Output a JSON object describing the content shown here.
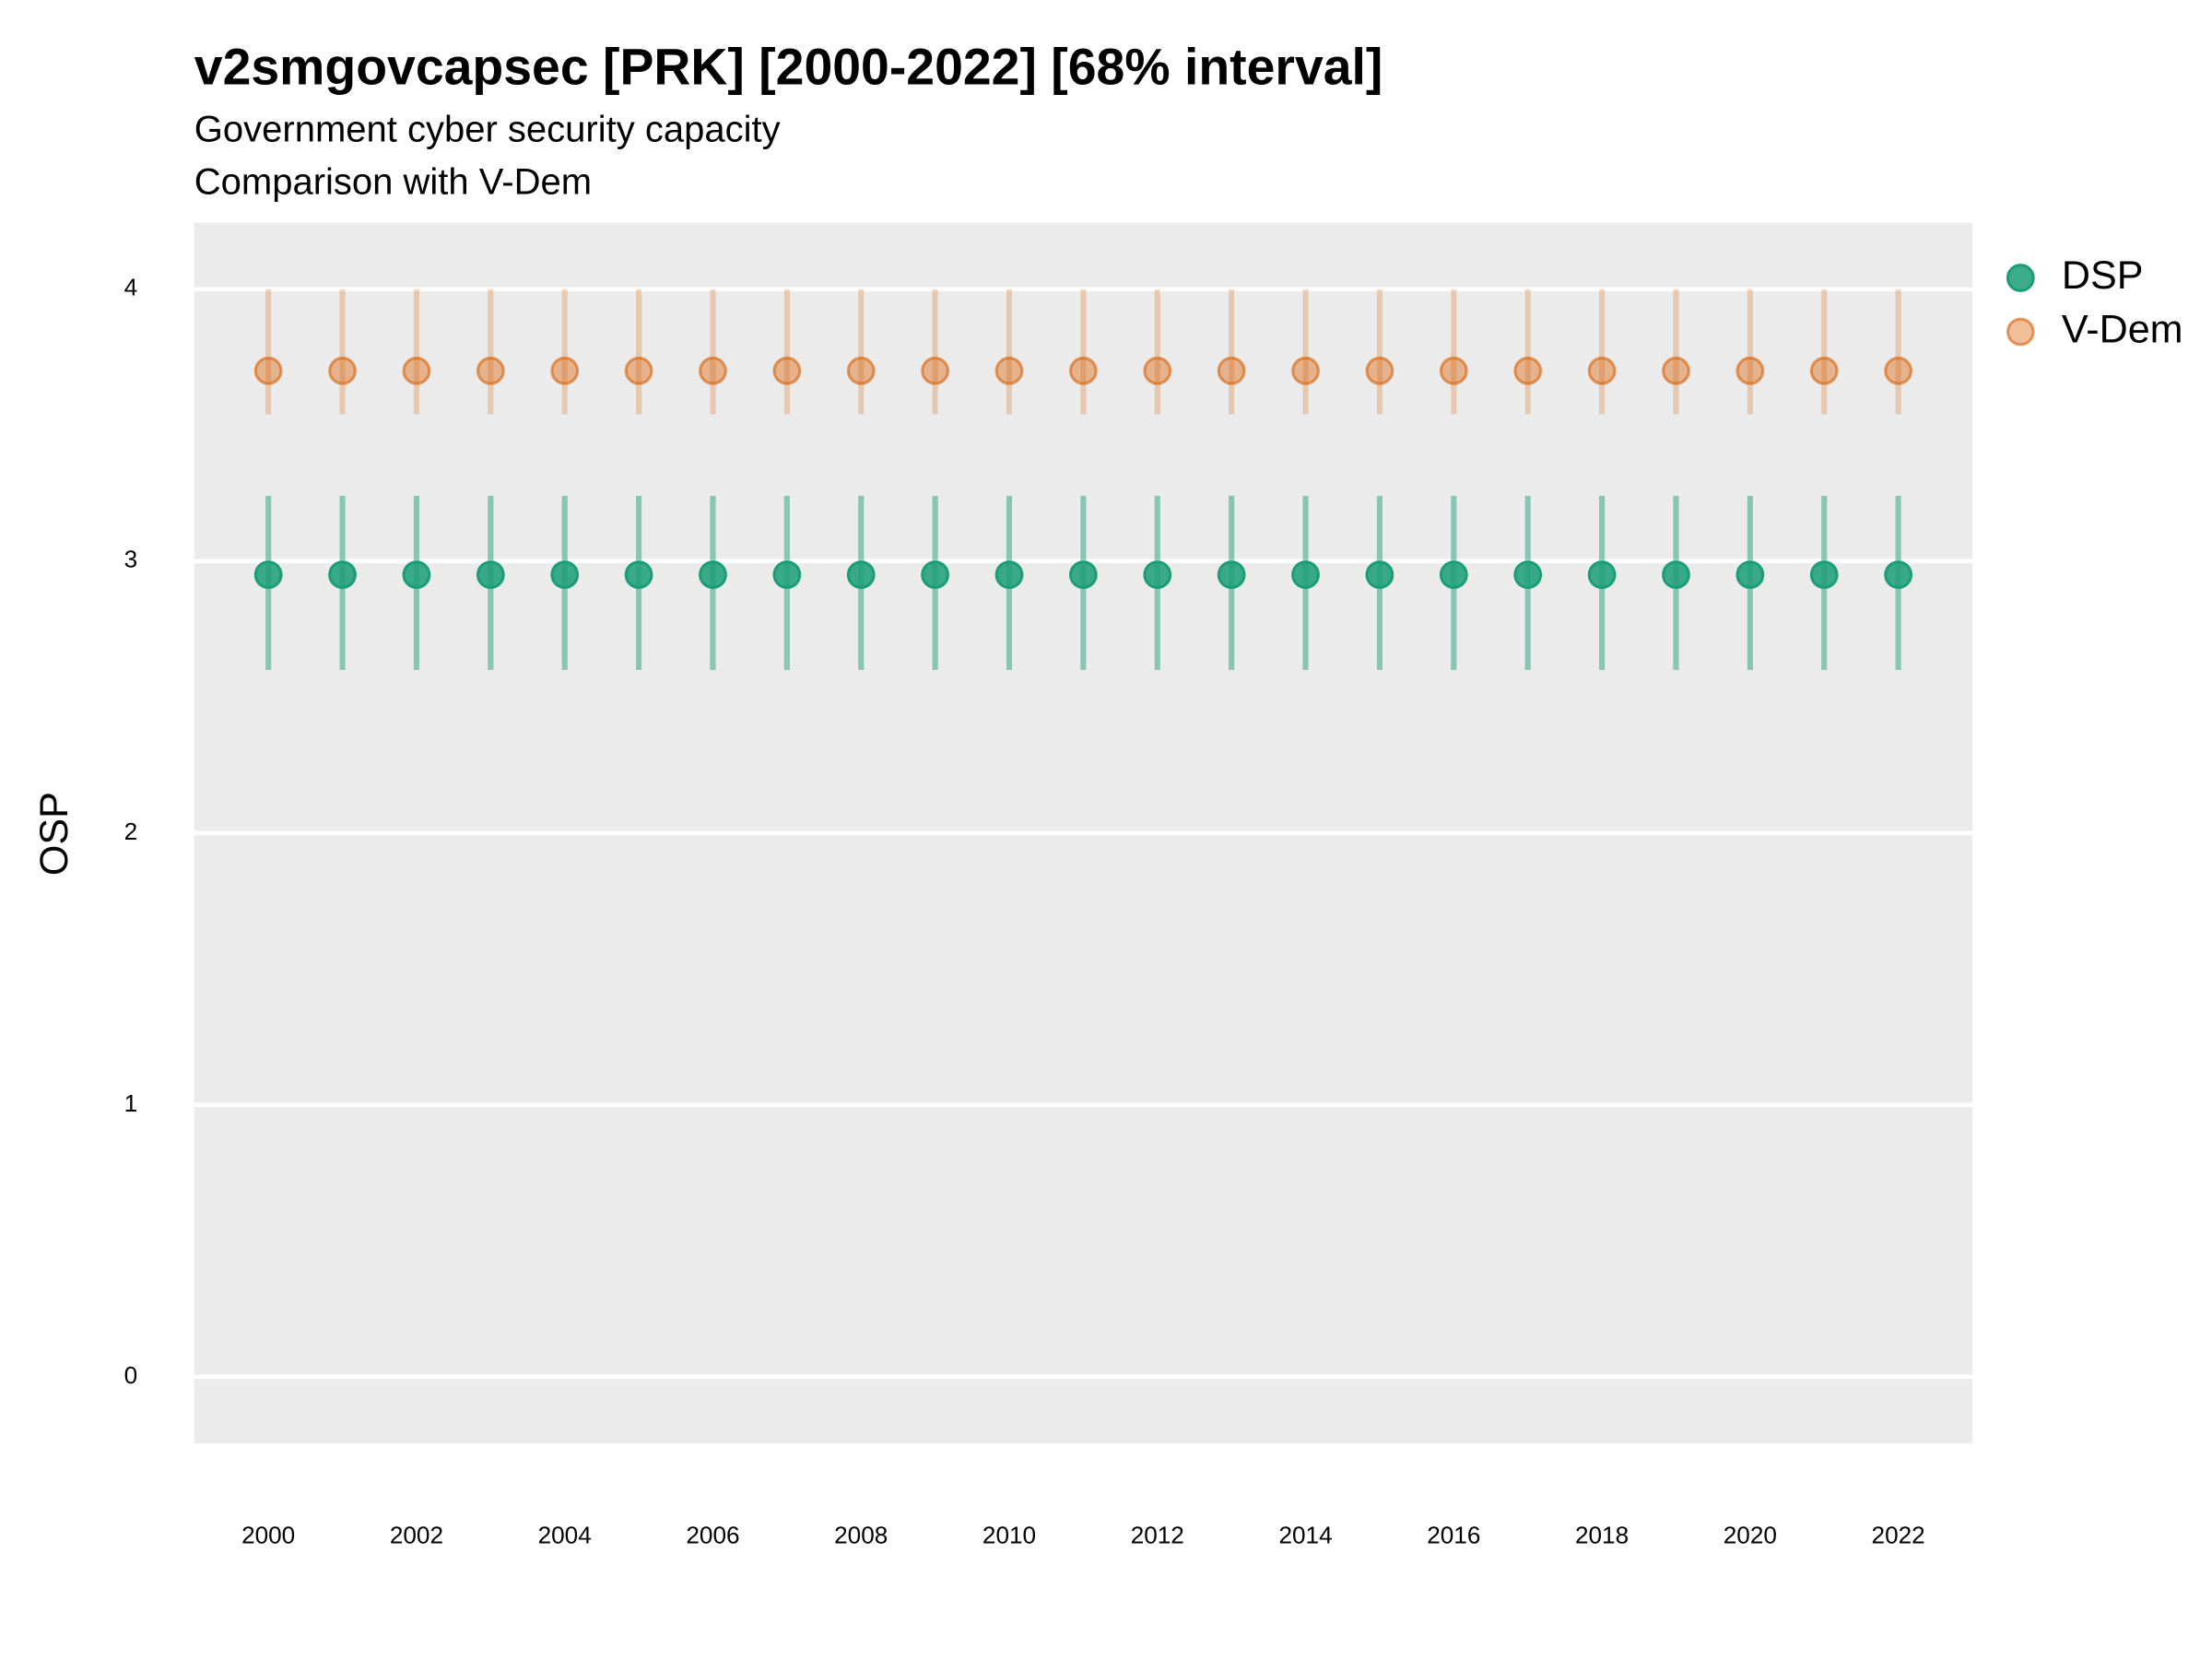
{
  "chart_data": {
    "type": "pointrange",
    "title": "v2smgovcapsec [PRK] [2000-2022] [68% interval]",
    "subtitle": "Government cyber security capacity",
    "caption": "Comparison with V-Dem",
    "y_label": "OSP",
    "x": [
      2000,
      2001,
      2002,
      2003,
      2004,
      2005,
      2006,
      2007,
      2008,
      2009,
      2010,
      2011,
      2012,
      2013,
      2014,
      2015,
      2016,
      2017,
      2018,
      2019,
      2020,
      2021,
      2022
    ],
    "series": [
      {
        "name": "DSP",
        "color": "#1b9e77",
        "opacity": 0.85,
        "values": [
          2.95,
          2.95,
          2.95,
          2.95,
          2.95,
          2.95,
          2.95,
          2.95,
          2.95,
          2.95,
          2.95,
          2.95,
          2.95,
          2.95,
          2.95,
          2.95,
          2.95,
          2.95,
          2.95,
          2.95,
          2.95,
          2.95,
          2.95
        ],
        "lower": [
          2.6,
          2.6,
          2.6,
          2.6,
          2.6,
          2.6,
          2.6,
          2.6,
          2.6,
          2.6,
          2.6,
          2.6,
          2.6,
          2.6,
          2.6,
          2.6,
          2.6,
          2.6,
          2.6,
          2.6,
          2.6,
          2.6,
          2.6
        ],
        "upper": [
          3.24,
          3.24,
          3.24,
          3.24,
          3.24,
          3.24,
          3.24,
          3.24,
          3.24,
          3.24,
          3.24,
          3.24,
          3.24,
          3.24,
          3.24,
          3.24,
          3.24,
          3.24,
          3.24,
          3.24,
          3.24,
          3.24,
          3.24
        ]
      },
      {
        "name": "V-Dem",
        "color": "#d95f02",
        "opacity": 0.4,
        "values": [
          3.7,
          3.7,
          3.7,
          3.7,
          3.7,
          3.7,
          3.7,
          3.7,
          3.7,
          3.7,
          3.7,
          3.7,
          3.7,
          3.7,
          3.7,
          3.7,
          3.7,
          3.7,
          3.7,
          3.7,
          3.7,
          3.7,
          3.7
        ],
        "lower": [
          3.54,
          3.54,
          3.54,
          3.54,
          3.54,
          3.54,
          3.54,
          3.54,
          3.54,
          3.54,
          3.54,
          3.54,
          3.54,
          3.54,
          3.54,
          3.54,
          3.54,
          3.54,
          3.54,
          3.54,
          3.54,
          3.54,
          3.54
        ],
        "upper": [
          4.0,
          4.0,
          4.0,
          4.0,
          4.0,
          4.0,
          4.0,
          4.0,
          4.0,
          4.0,
          4.0,
          4.0,
          4.0,
          4.0,
          4.0,
          4.0,
          4.0,
          4.0,
          4.0,
          4.0,
          4.0,
          4.0,
          4.0
        ]
      }
    ],
    "xlim": [
      1999,
      2023
    ],
    "xticks": [
      2000,
      2002,
      2004,
      2006,
      2008,
      2010,
      2012,
      2014,
      2016,
      2018,
      2020,
      2022
    ],
    "ylim": [
      -0.245,
      4.245
    ],
    "yticks": [
      0,
      1,
      2,
      3,
      4
    ],
    "grid": true,
    "legend": "right"
  }
}
